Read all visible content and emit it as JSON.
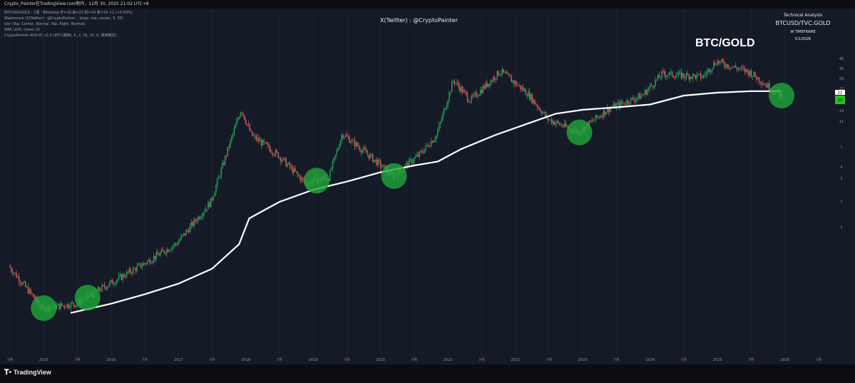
{
  "header": {
    "top_bar": "Crypto_Painter在TradingView.com制作，12月 30, 2025 21:02 UTC+8",
    "indicators": [
      "BTCUSD/GOLD · 1周 · Bitstamp  开=19  高=22  低=19  收=20  +1 (+5.03%)",
      "Watermark (X(Twitter) : @CryptoPainter, , large, top, center, 5, 30)",
      "Ickr (Top, Center, Normal, Top, Right, Normal)",
      "SMA (200, close)  22",
      "CryptoPainter ADX-VC v1.5 (BTC(通用), 5, 2, 16, 10, 0, 禁用模式)"
    ],
    "watermark": "X(Twitter) : @CryptoPainter"
  },
  "analysis_block": {
    "title": "Technical Analysis",
    "symbol": "BTCUSD/TVC:GOLD",
    "timeframe": "W TIMEFRAME",
    "date": "5/1/2026"
  },
  "big_title": "BTC/GOLD",
  "footer": {
    "brand": "TradingView",
    "logo_icon": "tradingview-logo-icon"
  },
  "colors": {
    "background": "#151a27",
    "candle_up": "#26a65b",
    "candle_down": "#e05a5a",
    "sma_line": "#ffffff",
    "support_circle": "#1fa83a",
    "last_price_label": "#22c31f"
  },
  "chart_data": {
    "type": "candlestick",
    "scale": "log",
    "title": "BTC/GOLD",
    "symbol": "BTCUSD/TVC:GOLD",
    "timeframe": "W",
    "x_tick_labels": [
      "7月",
      "2015",
      "7月",
      "2016",
      "7月",
      "2017",
      "7月",
      "2018",
      "7月",
      "2019",
      "7月",
      "2020",
      "7月",
      "2021",
      "7月",
      "2022",
      "7月",
      "2023",
      "7月",
      "2024",
      "7月",
      "2025",
      "7月",
      "2026",
      "7月"
    ],
    "y_tick_labels": [
      "46",
      "36",
      "29",
      "22",
      "18",
      "14",
      "11",
      "7",
      "4",
      "3",
      "2",
      "1"
    ],
    "y_range": [
      0.11,
      52
    ],
    "price_path": [
      {
        "t": 2014.5,
        "v": 0.5
      },
      {
        "t": 2015.0,
        "v": 0.2
      },
      {
        "t": 2015.5,
        "v": 0.22
      },
      {
        "t": 2016.0,
        "v": 0.34
      },
      {
        "t": 2016.5,
        "v": 0.52
      },
      {
        "t": 2017.0,
        "v": 0.82
      },
      {
        "t": 2017.5,
        "v": 2.0
      },
      {
        "t": 2017.95,
        "v": 15
      },
      {
        "t": 2018.1,
        "v": 8.5
      },
      {
        "t": 2018.5,
        "v": 5.5
      },
      {
        "t": 2018.9,
        "v": 3.0
      },
      {
        "t": 2019.25,
        "v": 3.4
      },
      {
        "t": 2019.45,
        "v": 8.8
      },
      {
        "t": 2019.8,
        "v": 5.8
      },
      {
        "t": 2020.2,
        "v": 3.5
      },
      {
        "t": 2020.6,
        "v": 5.6
      },
      {
        "t": 2020.85,
        "v": 8.5
      },
      {
        "t": 2021.1,
        "v": 28
      },
      {
        "t": 2021.35,
        "v": 18
      },
      {
        "t": 2021.8,
        "v": 34
      },
      {
        "t": 2022.2,
        "v": 21
      },
      {
        "t": 2022.5,
        "v": 12
      },
      {
        "t": 2022.95,
        "v": 9
      },
      {
        "t": 2023.4,
        "v": 15
      },
      {
        "t": 2023.9,
        "v": 20
      },
      {
        "t": 2024.2,
        "v": 32
      },
      {
        "t": 2024.8,
        "v": 30
      },
      {
        "t": 2025.0,
        "v": 42
      },
      {
        "t": 2025.5,
        "v": 33
      },
      {
        "t": 2025.95,
        "v": 20
      }
    ],
    "sma": {
      "name": "SMA (200, close)",
      "last_value": 22,
      "points": [
        {
          "t": 2015.4,
          "v": 0.18
        },
        {
          "t": 2016.0,
          "v": 0.22
        },
        {
          "t": 2016.5,
          "v": 0.27
        },
        {
          "t": 2017.0,
          "v": 0.34
        },
        {
          "t": 2017.5,
          "v": 0.47
        },
        {
          "t": 2017.9,
          "v": 0.8
        },
        {
          "t": 2018.05,
          "v": 1.4
        },
        {
          "t": 2018.5,
          "v": 2.0
        },
        {
          "t": 2019.0,
          "v": 2.6
        },
        {
          "t": 2019.5,
          "v": 3.1
        },
        {
          "t": 2020.0,
          "v": 3.8
        },
        {
          "t": 2020.5,
          "v": 4.4
        },
        {
          "t": 2020.85,
          "v": 4.8
        },
        {
          "t": 2021.2,
          "v": 6.3
        },
        {
          "t": 2021.7,
          "v": 8.5
        },
        {
          "t": 2022.2,
          "v": 11
        },
        {
          "t": 2022.6,
          "v": 13.5
        },
        {
          "t": 2023.0,
          "v": 14.7
        },
        {
          "t": 2023.5,
          "v": 15.5
        },
        {
          "t": 2024.0,
          "v": 16.5
        },
        {
          "t": 2024.5,
          "v": 20
        },
        {
          "t": 2025.0,
          "v": 21.3
        },
        {
          "t": 2025.5,
          "v": 22
        },
        {
          "t": 2025.95,
          "v": 22
        }
      ]
    },
    "support_touches": [
      2015.0,
      2015.65,
      2019.05,
      2020.2,
      2022.95,
      2025.95
    ],
    "last_price_labels": [
      "22",
      "20"
    ]
  }
}
